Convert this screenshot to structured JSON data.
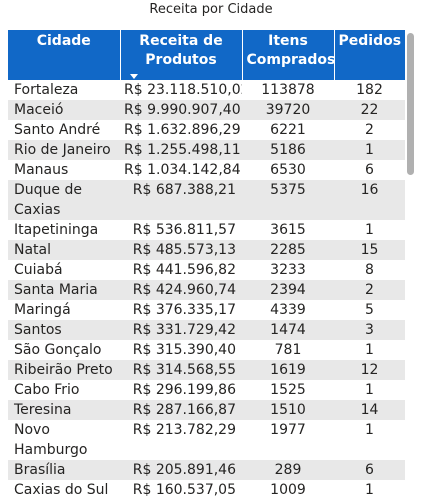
{
  "title": "Receita por Cidade",
  "columns": {
    "cidade": "Cidade",
    "receita": "Receita de Produtos",
    "itens": "Itens Comprados",
    "pedidos": "Pedidos"
  },
  "rows": [
    {
      "cidade": "Fortaleza",
      "receita": "R$ 23.118.510,02",
      "itens": "113878",
      "pedidos": "182"
    },
    {
      "cidade": "Maceió",
      "receita": "R$ 9.990.907,40",
      "itens": "39720",
      "pedidos": "22"
    },
    {
      "cidade": "Santo André",
      "receita": "R$ 1.632.896,29",
      "itens": "6221",
      "pedidos": "2"
    },
    {
      "cidade": "Rio de Janeiro",
      "receita": "R$ 1.255.498,11",
      "itens": "5186",
      "pedidos": "1"
    },
    {
      "cidade": "Manaus",
      "receita": "R$ 1.034.142,84",
      "itens": "6530",
      "pedidos": "6"
    },
    {
      "cidade": "Duque de Caxias",
      "receita": "R$ 687.388,21",
      "itens": "5375",
      "pedidos": "16"
    },
    {
      "cidade": "Itapetininga",
      "receita": "R$ 536.811,57",
      "itens": "3615",
      "pedidos": "1"
    },
    {
      "cidade": "Natal",
      "receita": "R$ 485.573,13",
      "itens": "2285",
      "pedidos": "15"
    },
    {
      "cidade": "Cuiabá",
      "receita": "R$ 441.596,82",
      "itens": "3233",
      "pedidos": "8"
    },
    {
      "cidade": "Santa Maria",
      "receita": "R$ 424.960,74",
      "itens": "2394",
      "pedidos": "2"
    },
    {
      "cidade": "Maringá",
      "receita": "R$ 376.335,17",
      "itens": "4339",
      "pedidos": "5"
    },
    {
      "cidade": "Santos",
      "receita": "R$ 331.729,42",
      "itens": "1474",
      "pedidos": "3"
    },
    {
      "cidade": "São Gonçalo",
      "receita": "R$ 315.390,40",
      "itens": "781",
      "pedidos": "1"
    },
    {
      "cidade": "Ribeirão Preto",
      "receita": "R$ 314.568,55",
      "itens": "1619",
      "pedidos": "12"
    },
    {
      "cidade": "Cabo Frio",
      "receita": "R$ 296.199,86",
      "itens": "1525",
      "pedidos": "1"
    },
    {
      "cidade": "Teresina",
      "receita": "R$ 287.166,87",
      "itens": "1510",
      "pedidos": "14"
    },
    {
      "cidade": "Novo Hamburgo",
      "receita": "R$ 213.782,29",
      "itens": "1977",
      "pedidos": "1"
    },
    {
      "cidade": "Brasília",
      "receita": "R$ 205.891,46",
      "itens": "289",
      "pedidos": "6"
    },
    {
      "cidade": "Caxias do Sul",
      "receita": "R$ 160.537,05",
      "itens": "1009",
      "pedidos": "1"
    }
  ],
  "sort": {
    "column": "receita",
    "direction": "descending",
    "icon": "sort-down-icon"
  },
  "colors": {
    "header_bg": "#1168c7",
    "header_text": "#ffffff",
    "band": "#e8e8e8"
  }
}
